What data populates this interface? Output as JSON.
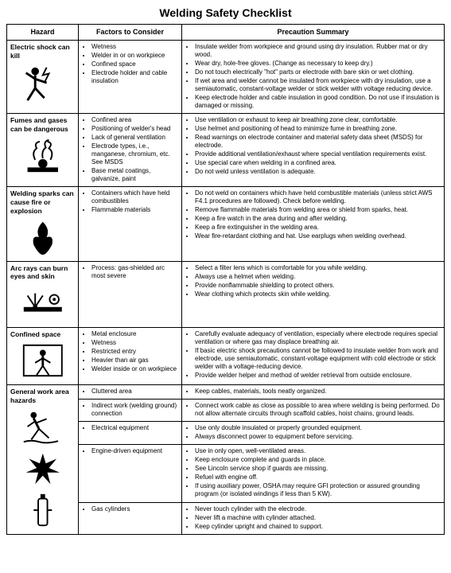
{
  "title": "Welding Safety Checklist",
  "columns": [
    "Hazard",
    "Factors\nto Consider",
    "Precaution Summary"
  ],
  "rows": [
    {
      "hazard": "Electric shock can kill",
      "icon": "person-shock",
      "factors": [
        "Wetness",
        "Welder in or on workpiece",
        "Confined space",
        "Electrode holder and cable insulation"
      ],
      "precautions": [
        "Insulate welder from workpiece and ground using dry insulation. Rubber mat or dry wood.",
        "Wear dry, hole-free gloves. (Change as necessary to keep dry.)",
        "Do not touch electrically \"hot\" parts or electrode with bare skin or wet clothing.",
        "If wet area and welder cannot be insulated from workpiece with dry insulation, use a semiautomatic, constant-voltage welder or stick welder with voltage reducing device.",
        "Keep electrode holder and cable insulation in good condition. Do not use if insulation is damaged or missing."
      ]
    },
    {
      "hazard": "Fumes and gases can be dangerous",
      "icon": "fumes",
      "factors": [
        "Confined area",
        "Positioning of welder's head",
        "Lack of general ventilation",
        "Electrode types, i.e., manganese, chromium, etc. See MSDS",
        "Base metal coatings, galvanize, paint"
      ],
      "precautions": [
        "Use ventilation or exhaust to keep air breathing zone clear, comfortable.",
        "Use helmet and positioning of head to minimize fume in breathing zone.",
        "Read warnings on electrode container and material safety data sheet (MSDS) for electrode.",
        "Provide additional ventilation/exhaust where special ventilation requirements exist.",
        "Use special care when welding in a confined area.",
        "Do not weld unless ventilation is adequate."
      ]
    },
    {
      "hazard": "Welding sparks can cause fire or explosion",
      "icon": "fire",
      "factors": [
        "Containers which have held combustibles",
        "Flammable materials"
      ],
      "precautions": [
        "Do not weld on containers which have held combustible materials (unless strict AWS F4.1 procedures are followed). Check before welding.",
        "Remove flammable materials from welding area or shield from sparks, heat.",
        "Keep a fire watch in the area during and after welding.",
        "Keep a fire extinguisher in the welding area.",
        "Wear fire-retardant clothing and hat. Use earplugs when welding overhead."
      ]
    },
    {
      "hazard": "Arc rays can burn eyes and skin",
      "icon": "arc-rays",
      "factors": [
        "Process: gas-shielded arc most severe"
      ],
      "precautions": [
        "Select a filter lens which is comfortable for you while welding.",
        "Always use a helmet when welding.",
        "Provide nonflammable shielding to protect others.",
        "Wear clothing which protects skin while welding."
      ]
    },
    {
      "hazard": "Confined space",
      "icon": "confined-space",
      "factors": [
        "Metal enclosure",
        "Wetness",
        "Restricted entry",
        "Heavier than air gas",
        "Welder inside or on workpiece"
      ],
      "precautions": [
        "Carefully evaluate adequacy of ventilation, especially where electrode requires special ventilation or where gas may displace breathing air.",
        "If basic electric shock precautions cannot be followed to insulate welder from work and electrode, use semiautomatic, constant-voltage equipment with cold electrode or stick welder with a voltage-reducing device.",
        "Provide welder helper and method of welder retrieval from outside enclosure."
      ]
    }
  ],
  "general": {
    "hazard": "General work area hazards",
    "icons": [
      "person-trip",
      "explosion",
      "cylinder"
    ],
    "subrows": [
      {
        "factor": "Cluttered area",
        "precautions": [
          "Keep cables, materials, tools neatly organized."
        ]
      },
      {
        "factor": "Indirect work (welding ground) connection",
        "precautions": [
          "Connect work cable as close as possible to area where welding is being performed. Do not allow alternate circuits through scaffold cables, hoist chains, ground leads."
        ]
      },
      {
        "factor": "Electrical equipment",
        "precautions": [
          "Use only double insulated or properly grounded equipment.",
          "Always disconnect power to equipment before servicing."
        ]
      },
      {
        "factor": "Engine-driven equipment",
        "precautions": [
          "Use in only open, well-ventilated areas.",
          "Keep enclosure complete and guards in place.",
          "See Lincoln service shop if guards are missing.",
          "Refuel with engine off.",
          "If using auxiliary power, OSHA may require GFI protection or assured grounding program (or isolated windings if less than 5 KW)."
        ]
      },
      {
        "factor": "Gas cylinders",
        "precautions": [
          "Never touch cylinder with the electrode.",
          "Never lift a machine with cylinder attached.",
          "Keep cylinder upright and chained to support."
        ]
      }
    ]
  }
}
